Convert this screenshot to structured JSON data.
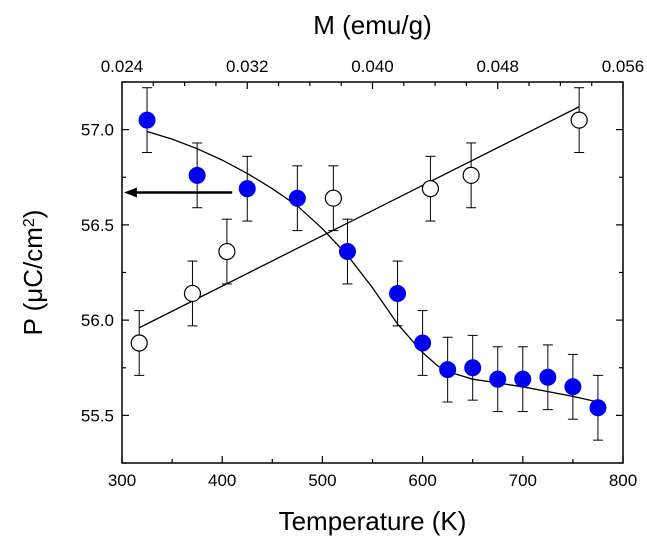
{
  "chart_data": {
    "type": "scatter",
    "xlabel": "Temperature (K)",
    "x2label": "M (emu/g)",
    "ylabel_parts": {
      "main": "P (μC/cm",
      "sup": "2",
      "close": ")"
    },
    "xlim": [
      300,
      800
    ],
    "x2lim": [
      0.024,
      0.056
    ],
    "ylim": [
      55.25,
      57.25
    ],
    "xticks": [
      300,
      400,
      500,
      600,
      700,
      800
    ],
    "x2ticks": [
      "0.024",
      "0.032",
      "0.040",
      "0.048",
      "0.056"
    ],
    "yticks": [
      "55.5",
      "56.0",
      "56.5",
      "57.0"
    ],
    "error_bar": 0.17,
    "series": [
      {
        "axis": "bottom",
        "marker": "filled",
        "color": "#0000ee",
        "x": [
          325,
          375,
          425,
          475,
          525,
          575,
          600,
          625,
          650,
          675,
          700,
          725,
          750,
          775
        ],
        "y": [
          57.05,
          56.76,
          56.69,
          56.64,
          56.36,
          56.14,
          55.88,
          55.74,
          55.75,
          55.69,
          55.69,
          55.7,
          55.65,
          55.54
        ]
      },
      {
        "axis": "top",
        "marker": "open",
        "color": "#000000",
        "x": [
          0.0251,
          0.0285,
          0.0307,
          0.0375,
          0.0437,
          0.0463,
          0.0532
        ],
        "y": [
          55.88,
          56.14,
          56.36,
          56.64,
          56.69,
          56.76,
          57.05
        ]
      }
    ],
    "fit_curve_bottom": {
      "x": [
        325,
        350,
        375,
        400,
        425,
        450,
        475,
        500,
        525,
        550,
        575,
        600,
        615,
        625,
        650,
        700,
        750,
        775
      ],
      "y": [
        56.99,
        56.95,
        56.9,
        56.84,
        56.77,
        56.69,
        56.6,
        56.48,
        56.34,
        56.17,
        55.98,
        55.83,
        55.76,
        55.73,
        55.69,
        55.65,
        55.6,
        55.57
      ]
    },
    "fit_line_top": {
      "x": [
        0.0251,
        0.0532
      ],
      "y": [
        55.96,
        57.12
      ]
    },
    "arrow": {
      "direction": "left",
      "target_axis": "left",
      "y": 56.67,
      "x_from": 410,
      "x_to": 302
    }
  }
}
